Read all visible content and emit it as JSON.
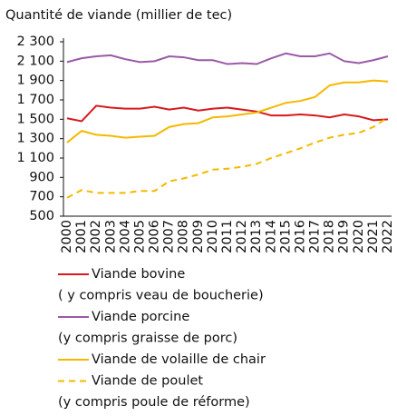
{
  "chart_data": {
    "type": "line",
    "title": "Quantité de viande (millier de tec)",
    "categories": [
      "2000",
      "2001",
      "2002",
      "2003",
      "2004",
      "2005",
      "2006",
      "2007",
      "2008",
      "2009",
      "2010",
      "2011",
      "2012",
      "2013",
      "2014",
      "2015",
      "2016",
      "2017",
      "2018",
      "2019",
      "2020",
      "2021",
      "2022"
    ],
    "ylim": [
      500,
      2300
    ],
    "yticks": [
      500,
      700,
      900,
      {
        "value": 1100,
        "label": "1 100"
      },
      {
        "value": 1300,
        "label": "1 300"
      },
      {
        "value": 1500,
        "label": "1 500"
      },
      {
        "value": 1700,
        "label": "1 700"
      },
      {
        "value": 1900,
        "label": "1 900"
      },
      {
        "value": 2100,
        "label": "2 100"
      },
      {
        "value": 2300,
        "label": "2 300"
      }
    ],
    "grid": false,
    "series": [
      {
        "name": "Viande bovine",
        "detail": "( y compris veau de boucherie)",
        "color": "#d7191c",
        "dashed": false,
        "values": [
          1510,
          1480,
          1640,
          1620,
          1610,
          1610,
          1630,
          1600,
          1620,
          1590,
          1610,
          1620,
          1600,
          1580,
          1540,
          1540,
          1550,
          1540,
          1520,
          1550,
          1530,
          1490,
          1500
        ]
      },
      {
        "name": "Viande porcine",
        "detail": "(y compris graisse de porc)",
        "color": "#9b59a8",
        "dashed": false,
        "values": [
          2090,
          2130,
          2150,
          2160,
          2120,
          2090,
          2100,
          2150,
          2140,
          2110,
          2110,
          2070,
          2080,
          2070,
          2130,
          2180,
          2150,
          2150,
          2180,
          2100,
          2080,
          2110,
          2150
        ]
      },
      {
        "name": "Viande de volaille de chair",
        "color": "#f5b800",
        "dashed": false,
        "values": [
          1260,
          1380,
          1340,
          1330,
          1310,
          1320,
          1330,
          1420,
          1450,
          1460,
          1520,
          1530,
          1550,
          1570,
          1620,
          1670,
          1690,
          1730,
          1850,
          1880,
          1880,
          1900,
          1890
        ]
      },
      {
        "name": "Viande de poulet",
        "detail": "(y compris poule de réforme)",
        "color": "#f5b800",
        "dashed": true,
        "values": [
          690,
          770,
          740,
          740,
          740,
          760,
          760,
          860,
          890,
          930,
          980,
          990,
          1010,
          1040,
          1100,
          1150,
          1200,
          1260,
          1310,
          1340,
          1360,
          1420,
          1520
        ]
      }
    ]
  }
}
